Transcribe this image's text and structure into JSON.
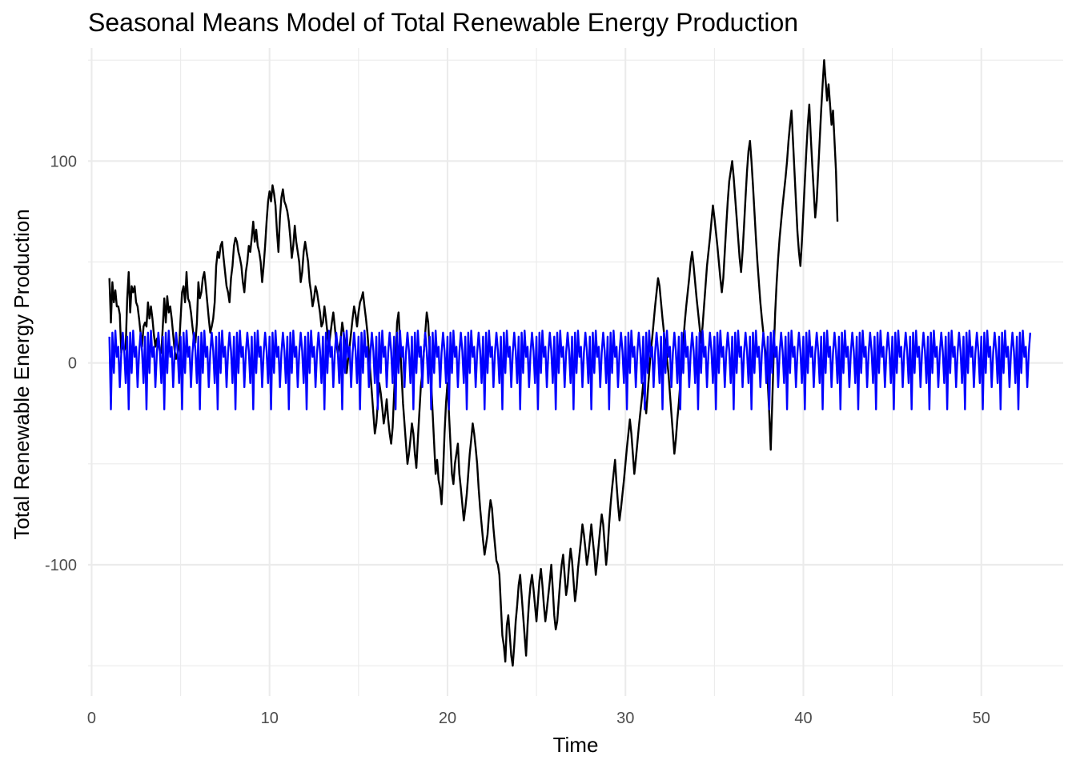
{
  "chart_data": {
    "type": "line",
    "title": "Seasonal Means Model of Total Renewable Energy Production",
    "xlabel": "Time",
    "ylabel": "Total Renewable Energy Production",
    "xlim": [
      -0.2,
      54.6
    ],
    "ylim": [
      -165,
      156
    ],
    "x_ticks": [
      0,
      10,
      20,
      30,
      40,
      50
    ],
    "y_ticks": [
      -100,
      0,
      100
    ],
    "grid": true,
    "legend": "none",
    "series": [
      {
        "color": "#000000",
        "start": 1,
        "step": 0.08333,
        "values": [
          42,
          20,
          40,
          30,
          36,
          28,
          28,
          24,
          5,
          10,
          6,
          8,
          32,
          45,
          25,
          38,
          35,
          38,
          30,
          28,
          22,
          15,
          8,
          18,
          20,
          18,
          30,
          22,
          28,
          22,
          14,
          8,
          12,
          10,
          6,
          5,
          18,
          32,
          20,
          33,
          25,
          28,
          22,
          14,
          6,
          2,
          5,
          8,
          22,
          35,
          38,
          30,
          45,
          32,
          30,
          25,
          18,
          12,
          10,
          20,
          40,
          32,
          35,
          42,
          45,
          38,
          30,
          22,
          15,
          18,
          22,
          30,
          48,
          55,
          52,
          58,
          60,
          52,
          45,
          38,
          35,
          30,
          42,
          48,
          58,
          62,
          60,
          55,
          52,
          48,
          40,
          35,
          45,
          50,
          58,
          55,
          62,
          70,
          60,
          66,
          58,
          55,
          50,
          40,
          48,
          58,
          70,
          80,
          85,
          80,
          88,
          84,
          78,
          65,
          55,
          72,
          82,
          86,
          80,
          78,
          75,
          70,
          62,
          52,
          58,
          68,
          60,
          55,
          50,
          40,
          45,
          55,
          60,
          55,
          50,
          40,
          35,
          28,
          32,
          38,
          35,
          30,
          25,
          18,
          20,
          28,
          22,
          15,
          8,
          14,
          20,
          25,
          18,
          10,
          5,
          8,
          12,
          20,
          15,
          8,
          -5,
          2,
          8,
          15,
          22,
          28,
          24,
          18,
          25,
          30,
          32,
          35,
          28,
          22,
          15,
          5,
          -5,
          -15,
          -25,
          -35,
          -30,
          -20,
          -10,
          -15,
          -22,
          -30,
          -25,
          -18,
          -28,
          -35,
          -40,
          -32,
          -15,
          0,
          20,
          25,
          10,
          -5,
          -20,
          -30,
          -40,
          -50,
          -45,
          -38,
          -30,
          -35,
          -45,
          -52,
          -38,
          -25,
          -12,
          -5,
          5,
          15,
          25,
          20,
          5,
          -10,
          -25,
          -40,
          -55,
          -48,
          -58,
          -62,
          -70,
          -55,
          -35,
          -20,
          -10,
          -25,
          -40,
          -55,
          -60,
          -50,
          -45,
          -40,
          -55,
          -62,
          -70,
          -78,
          -72,
          -65,
          -55,
          -45,
          -38,
          -30,
          -35,
          -42,
          -50,
          -62,
          -72,
          -80,
          -88,
          -95,
          -90,
          -85,
          -75,
          -68,
          -72,
          -82,
          -90,
          -98,
          -100,
          -105,
          -120,
          -135,
          -140,
          -148,
          -130,
          -125,
          -135,
          -145,
          -150,
          -140,
          -128,
          -120,
          -110,
          -105,
          -115,
          -125,
          -135,
          -145,
          -130,
          -118,
          -110,
          -105,
          -112,
          -120,
          -128,
          -118,
          -108,
          -102,
          -110,
          -120,
          -128,
          -122,
          -115,
          -108,
          -100,
          -112,
          -125,
          -132,
          -128,
          -118,
          -108,
          -100,
          -95,
          -105,
          -115,
          -110,
          -100,
          -92,
          -98,
          -108,
          -118,
          -112,
          -102,
          -95,
          -88,
          -80,
          -85,
          -92,
          -100,
          -95,
          -88,
          -80,
          -88,
          -95,
          -105,
          -98,
          -90,
          -82,
          -75,
          -80,
          -90,
          -100,
          -92,
          -80,
          -70,
          -62,
          -55,
          -48,
          -60,
          -70,
          -78,
          -72,
          -65,
          -58,
          -50,
          -42,
          -35,
          -28,
          -35,
          -45,
          -55,
          -48,
          -40,
          -32,
          -25,
          -18,
          -10,
          -18,
          -25,
          -15,
          -5,
          5,
          12,
          20,
          28,
          35,
          42,
          38,
          30,
          22,
          15,
          8,
          2,
          -5,
          -15,
          -25,
          -35,
          -45,
          -38,
          -28,
          -20,
          -10,
          0,
          10,
          20,
          28,
          35,
          42,
          50,
          55,
          48,
          40,
          32,
          25,
          18,
          10,
          18,
          28,
          38,
          48,
          55,
          62,
          70,
          78,
          72,
          65,
          58,
          50,
          42,
          35,
          42,
          55,
          68,
          80,
          90,
          95,
          100,
          92,
          82,
          72,
          62,
          52,
          45,
          55,
          68,
          82,
          95,
          105,
          110,
          100,
          88,
          75,
          62,
          50,
          40,
          30,
          22,
          15,
          8,
          2,
          -10,
          -25,
          -43,
          -20,
          5,
          25,
          40,
          52,
          62,
          70,
          78,
          85,
          92,
          100,
          110,
          118,
          125,
          110,
          95,
          80,
          65,
          55,
          48,
          60,
          75,
          90,
          105,
          118,
          128,
          112,
          98,
          85,
          72,
          80,
          95,
          110,
          125,
          138,
          150,
          140,
          130,
          138,
          128,
          118,
          125,
          110,
          95,
          70
        ]
      },
      {
        "color": "#0000ff",
        "start": 1,
        "step": 0.08333,
        "cycle": [
          13,
          -23,
          15,
          -5,
          16,
          3,
          8,
          -12,
          5,
          15,
          6,
          -10
        ],
        "points": 622
      }
    ]
  }
}
